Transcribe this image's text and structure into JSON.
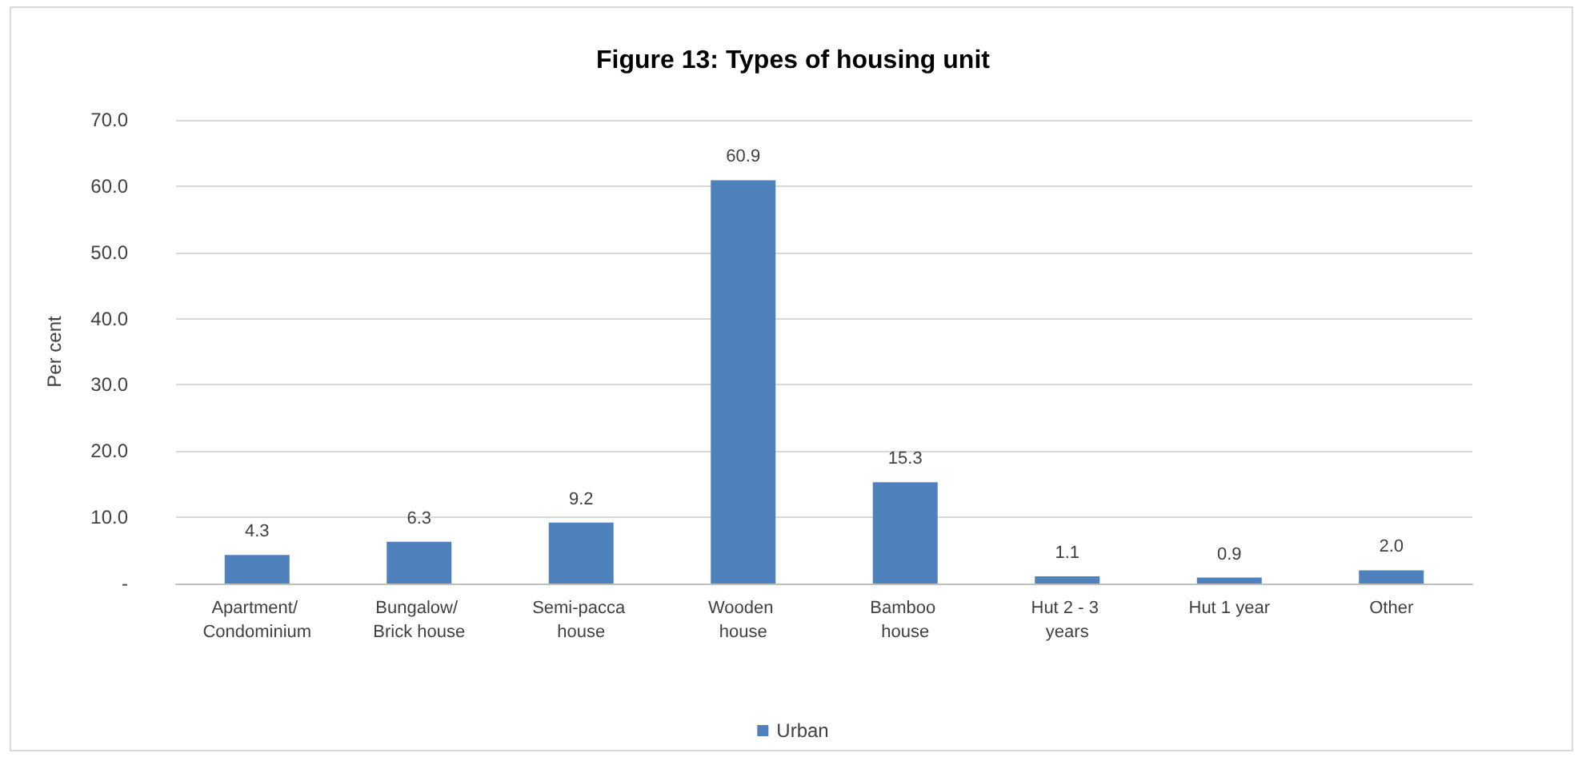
{
  "chart_data": {
    "type": "bar",
    "title": "Figure 13: Types of housing unit",
    "ylabel": "Per cent",
    "categories": [
      "Apartment/ Condominium",
      "Bungalow/ Brick house",
      "Semi-pacca house",
      "Wooden house",
      "Bamboo house",
      "Hut 2 - 3 years",
      "Hut 1 year",
      "Other"
    ],
    "series": [
      {
        "name": "Urban",
        "color": "#4f81bd",
        "values": [
          4.3,
          6.3,
          9.2,
          60.9,
          15.3,
          1.1,
          0.9,
          2.0
        ],
        "value_labels": [
          "4.3",
          "6.3",
          "9.2",
          "60.9",
          "15.3",
          "1.1",
          "0.9",
          "2.0"
        ]
      }
    ],
    "ylim": [
      0,
      70
    ],
    "yticks": [
      {
        "value": 0,
        "label": "-"
      },
      {
        "value": 10,
        "label": "10.0"
      },
      {
        "value": 20,
        "label": "20.0"
      },
      {
        "value": 30,
        "label": "30.0"
      },
      {
        "value": 40,
        "label": "40.0"
      },
      {
        "value": 50,
        "label": "50.0"
      },
      {
        "value": 60,
        "label": "60.0"
      },
      {
        "value": 70,
        "label": "70.0"
      }
    ],
    "grid": "y",
    "legend": "bottom"
  }
}
